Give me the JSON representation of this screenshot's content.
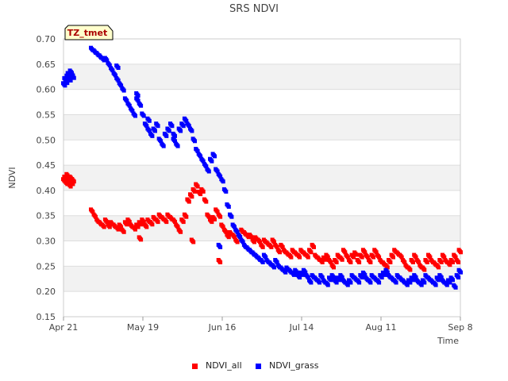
{
  "chart_data": {
    "type": "scatter",
    "title": "SRS NDVI",
    "xlabel": "Time",
    "ylabel": "NDVI",
    "badge": "TZ_tmet",
    "x_ticks": [
      "Apr 21",
      "May 19",
      "Jun 16",
      "Jul 14",
      "Aug 11",
      "Sep 8"
    ],
    "xlim_days": [
      0,
      140
    ],
    "ylim": [
      0.15,
      0.7
    ],
    "y_ticks": [
      0.15,
      0.2,
      0.25,
      0.3,
      0.35,
      0.4,
      0.45,
      0.5,
      0.55,
      0.6,
      0.65,
      0.7
    ],
    "grid": true,
    "legend_position": "bottom-center",
    "series": [
      {
        "name": "NDVI_all",
        "color": "#ff0000",
        "x_days": [
          0.2,
          0.6,
          1.0,
          1.4,
          1.8,
          2.2,
          2.6,
          3.0,
          3.4,
          10.0,
          11.0,
          12.0,
          13.0,
          14.0,
          15.0,
          16.0,
          17.0,
          18.0,
          19.0,
          20.0,
          21.0,
          22.0,
          23.0,
          24.0,
          25.0,
          26.0,
          27.0,
          28.0,
          29.0,
          30.0,
          31.0,
          32.0,
          33.0,
          34.0,
          35.0,
          36.0,
          37.0,
          38.0,
          39.0,
          40.0,
          41.0,
          42.0,
          43.0,
          44.0,
          45.0,
          46.0,
          47.0,
          48.0,
          49.0,
          50.0,
          51.0,
          52.0,
          53.0,
          54.0,
          55.0,
          56.0,
          57.0,
          58.0,
          59.0,
          60.0,
          61.0,
          62.0,
          63.0,
          64.0,
          65.0,
          66.0,
          67.0,
          68.0,
          69.0,
          70.0,
          71.0,
          72.0,
          73.0,
          74.0,
          75.0,
          76.0,
          77.0,
          78.0,
          79.0,
          80.0,
          81.0,
          82.0,
          83.0,
          84.0,
          85.0,
          86.0,
          87.0,
          88.0,
          89.0,
          90.0,
          91.0,
          92.0,
          93.0,
          94.0,
          95.0,
          96.0,
          97.0,
          98.0,
          99.0,
          100.0,
          101.0,
          102.0,
          103.0,
          104.0,
          105.0,
          106.0,
          107.0,
          108.0,
          109.0,
          110.0,
          111.0,
          112.0,
          113.0,
          114.0,
          115.0,
          116.0,
          117.0,
          118.0,
          119.0,
          120.0,
          121.0,
          122.0,
          123.0,
          124.0,
          125.0,
          126.0,
          127.0,
          128.0,
          129.0,
          130.0,
          131.0,
          132.0,
          133.0,
          134.0,
          135.0,
          136.0,
          137.0,
          138.0,
          139.0,
          139.8,
          45.5,
          55.0,
          27.0
        ],
        "y": [
          0.42,
          0.425,
          0.415,
          0.43,
          0.42,
          0.41,
          0.425,
          0.415,
          0.42,
          0.36,
          0.35,
          0.34,
          0.335,
          0.33,
          0.34,
          0.33,
          0.335,
          0.33,
          0.325,
          0.33,
          0.32,
          0.335,
          0.34,
          0.33,
          0.325,
          0.33,
          0.335,
          0.34,
          0.33,
          0.34,
          0.335,
          0.345,
          0.34,
          0.35,
          0.345,
          0.34,
          0.35,
          0.345,
          0.34,
          0.33,
          0.32,
          0.34,
          0.35,
          0.38,
          0.39,
          0.4,
          0.41,
          0.395,
          0.4,
          0.38,
          0.35,
          0.34,
          0.345,
          0.36,
          0.35,
          0.33,
          0.32,
          0.31,
          0.315,
          0.31,
          0.3,
          0.31,
          0.32,
          0.315,
          0.31,
          0.31,
          0.3,
          0.305,
          0.3,
          0.29,
          0.3,
          0.295,
          0.29,
          0.3,
          0.29,
          0.28,
          0.29,
          0.28,
          0.275,
          0.27,
          0.28,
          0.275,
          0.27,
          0.28,
          0.275,
          0.27,
          0.28,
          0.29,
          0.27,
          0.265,
          0.26,
          0.265,
          0.27,
          0.26,
          0.25,
          0.26,
          0.27,
          0.265,
          0.28,
          0.27,
          0.26,
          0.27,
          0.275,
          0.26,
          0.27,
          0.28,
          0.27,
          0.26,
          0.27,
          0.28,
          0.27,
          0.26,
          0.255,
          0.25,
          0.26,
          0.27,
          0.28,
          0.275,
          0.27,
          0.26,
          0.25,
          0.245,
          0.26,
          0.27,
          0.26,
          0.25,
          0.245,
          0.26,
          0.27,
          0.26,
          0.255,
          0.25,
          0.26,
          0.27,
          0.26,
          0.255,
          0.26,
          0.27,
          0.26,
          0.28,
          0.3,
          0.26,
          0.305
        ]
      },
      {
        "name": "NDVI_grass",
        "color": "#0000ff",
        "x_days": [
          0.2,
          0.6,
          1.0,
          1.4,
          1.8,
          2.2,
          2.6,
          3.0,
          3.4,
          10.0,
          11.0,
          12.0,
          13.0,
          14.0,
          15.0,
          16.0,
          17.0,
          18.0,
          19.0,
          20.0,
          21.0,
          22.0,
          23.0,
          24.0,
          25.0,
          26.0,
          27.0,
          28.0,
          29.0,
          30.0,
          31.0,
          32.0,
          33.0,
          34.0,
          35.0,
          36.0,
          37.0,
          38.0,
          39.0,
          40.0,
          41.0,
          42.0,
          43.0,
          44.0,
          45.0,
          46.0,
          47.0,
          48.0,
          49.0,
          50.0,
          51.0,
          52.0,
          53.0,
          54.0,
          55.0,
          56.0,
          57.0,
          58.0,
          59.0,
          60.0,
          61.0,
          62.0,
          63.0,
          64.0,
          65.0,
          66.0,
          67.0,
          68.0,
          69.0,
          70.0,
          71.0,
          72.0,
          73.0,
          74.0,
          75.0,
          76.0,
          77.0,
          78.0,
          79.0,
          80.0,
          81.0,
          82.0,
          83.0,
          84.0,
          85.0,
          86.0,
          87.0,
          88.0,
          89.0,
          90.0,
          91.0,
          92.0,
          93.0,
          94.0,
          95.0,
          96.0,
          97.0,
          98.0,
          99.0,
          100.0,
          101.0,
          102.0,
          103.0,
          104.0,
          105.0,
          106.0,
          107.0,
          108.0,
          109.0,
          110.0,
          111.0,
          112.0,
          113.0,
          114.0,
          115.0,
          116.0,
          117.0,
          118.0,
          119.0,
          120.0,
          121.0,
          122.0,
          123.0,
          124.0,
          125.0,
          126.0,
          127.0,
          128.0,
          129.0,
          130.0,
          131.0,
          132.0,
          133.0,
          134.0,
          135.0,
          136.0,
          137.0,
          138.0,
          139.0,
          139.8,
          19.0,
          26.0,
          30.0,
          55.0,
          39.0
        ],
        "y": [
          0.61,
          0.62,
          0.615,
          0.625,
          0.63,
          0.62,
          0.635,
          0.63,
          0.625,
          0.68,
          0.675,
          0.67,
          0.665,
          0.66,
          0.66,
          0.65,
          0.64,
          0.63,
          0.62,
          0.61,
          0.6,
          0.58,
          0.57,
          0.56,
          0.55,
          0.58,
          0.57,
          0.55,
          0.53,
          0.52,
          0.51,
          0.52,
          0.53,
          0.5,
          0.49,
          0.51,
          0.52,
          0.53,
          0.5,
          0.49,
          0.52,
          0.53,
          0.54,
          0.53,
          0.52,
          0.5,
          0.48,
          0.47,
          0.46,
          0.45,
          0.44,
          0.46,
          0.47,
          0.44,
          0.43,
          0.42,
          0.4,
          0.37,
          0.35,
          0.33,
          0.32,
          0.31,
          0.3,
          0.29,
          0.285,
          0.28,
          0.275,
          0.27,
          0.265,
          0.26,
          0.27,
          0.26,
          0.255,
          0.25,
          0.26,
          0.25,
          0.245,
          0.24,
          0.245,
          0.24,
          0.235,
          0.24,
          0.23,
          0.235,
          0.24,
          0.23,
          0.22,
          0.23,
          0.225,
          0.22,
          0.23,
          0.22,
          0.215,
          0.225,
          0.23,
          0.22,
          0.225,
          0.23,
          0.22,
          0.215,
          0.22,
          0.23,
          0.225,
          0.22,
          0.23,
          0.235,
          0.225,
          0.22,
          0.23,
          0.225,
          0.22,
          0.23,
          0.235,
          0.24,
          0.23,
          0.225,
          0.22,
          0.23,
          0.225,
          0.22,
          0.215,
          0.22,
          0.225,
          0.23,
          0.22,
          0.215,
          0.22,
          0.23,
          0.225,
          0.22,
          0.215,
          0.225,
          0.23,
          0.22,
          0.215,
          0.22,
          0.225,
          0.21,
          0.23,
          0.24,
          0.645,
          0.59,
          0.54,
          0.29,
          0.51
        ]
      }
    ]
  }
}
